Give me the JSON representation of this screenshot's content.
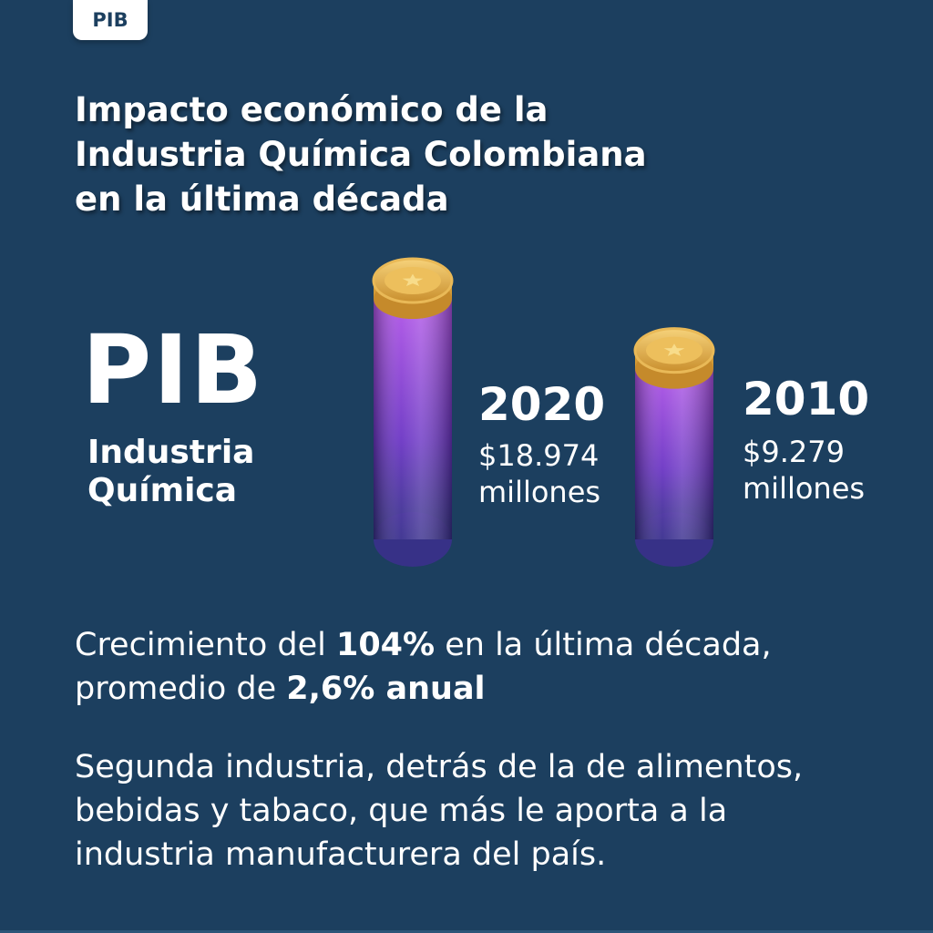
{
  "tag": "PIB",
  "title": {
    "line1": "Impacto económico de la",
    "line2": "Industria Química Colombiana",
    "line3": "en la última década"
  },
  "pib_label": "PIB",
  "sub_label": {
    "line1": "Industria",
    "line2": "Química"
  },
  "chart_data": {
    "type": "bar",
    "categories": [
      "2020",
      "2010"
    ],
    "values": [
      18974,
      9279
    ],
    "value_labels": [
      "$18.974",
      "$9.279"
    ],
    "unit_label": "millones",
    "bar_style": "coin stacks",
    "colors": {
      "bar_top": "#a74de0",
      "bar_bottom": "#3a2a8a",
      "coin": "#e8b54a"
    }
  },
  "paragraph1": {
    "part1": "Crecimiento del ",
    "bold1": "104%",
    "part2": " en la última década,",
    "part3": "promedio de ",
    "bold2": "2,6% anual"
  },
  "paragraph2": {
    "line1": "Segunda industria, detrás de la de alimentos,",
    "line2": "bebidas y tabaco, que más le aporta a la",
    "line3": "industria manufacturera del país."
  },
  "colors": {
    "background": "#1c3f5f",
    "text": "#ffffff"
  }
}
